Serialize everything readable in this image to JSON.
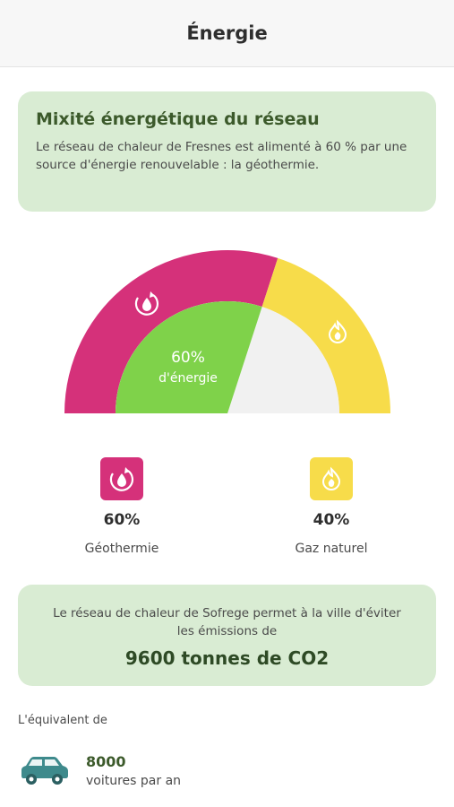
{
  "header": {
    "title": "Énergie"
  },
  "mix_card": {
    "title": "Mixité énergétique du réseau",
    "text": "Le réseau de chaleur de Fresnes est alimenté à 60 % par une source d'énergie renouvelable : la géothermie."
  },
  "gauge": {
    "center_value": "60%",
    "center_label": "d'énergie",
    "renewable_fraction": 0.6,
    "colors": {
      "geothermie": "#d5317a",
      "gaz": "#f7dc4a",
      "center": "#7fd24a",
      "remaining": "#f1f1f1"
    },
    "icons": {
      "geothermie": "geothermal-drop-icon",
      "gaz": "flame-icon"
    }
  },
  "legend": [
    {
      "name": "Géothermie",
      "value": "60%",
      "color": "#d5317a",
      "icon": "geothermal-drop-icon"
    },
    {
      "name": "Gaz naturel",
      "value": "40%",
      "color": "#f7dc4a",
      "icon": "flame-icon"
    }
  ],
  "co2_card": {
    "text": "Le réseau de chaleur de Sofrege permet à la ville d'éviter les émissions de",
    "amount": "9600 tonnes de CO2"
  },
  "equivalent": {
    "label": "L'équivalent de",
    "value": "8000",
    "unit": "voitures par an",
    "icon": "car-icon",
    "car_color": "#3e8a8c"
  }
}
